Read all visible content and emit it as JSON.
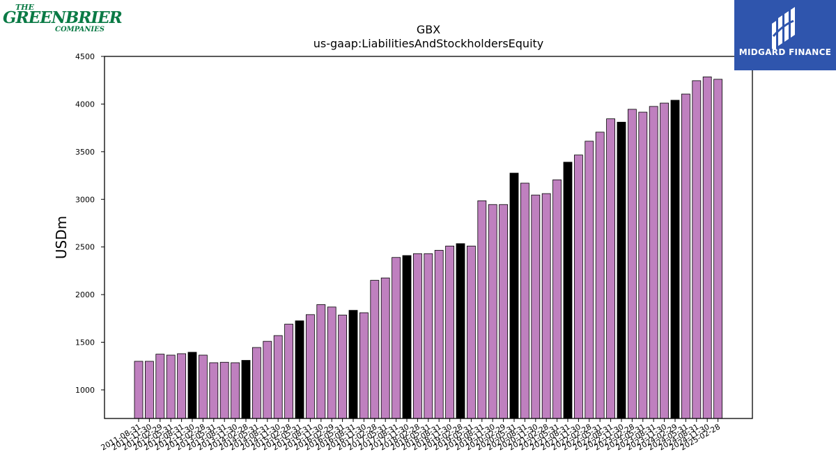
{
  "logos": {
    "left": {
      "line1": "THE",
      "line2": "GREENBRIER",
      "line3": "COMPANIES"
    },
    "right": {
      "text": "MIDGARD FINANCE"
    }
  },
  "chart_data": {
    "type": "bar",
    "title": "GBX",
    "subtitle": "us-gaap:LiabilitiesAndStockholdersEquity",
    "xlabel": "",
    "ylabel": "USDm",
    "ylim": [
      700,
      4500
    ],
    "yticks": [
      1000,
      1500,
      2000,
      2500,
      3000,
      3500,
      4000,
      4500
    ],
    "grid": false,
    "colors": {
      "quarter": "#bf80bf",
      "fiscal_year_end": "#000000"
    },
    "categories": [
      "2011-08-31",
      "2011-11-30",
      "2012-02-29",
      "2012-05-31",
      "2012-08-31",
      "2012-11-30",
      "2013-02-28",
      "2013-05-31",
      "2013-08-31",
      "2013-11-30",
      "2014-02-28",
      "2014-05-31",
      "2014-08-31",
      "2014-11-30",
      "2015-02-28",
      "2015-05-31",
      "2015-08-31",
      "2015-11-30",
      "2016-02-29",
      "2016-05-31",
      "2016-08-31",
      "2016-11-30",
      "2017-02-28",
      "2017-05-31",
      "2017-08-31",
      "2017-11-30",
      "2018-02-28",
      "2018-05-31",
      "2018-08-31",
      "2018-11-30",
      "2019-02-28",
      "2019-05-31",
      "2019-08-31",
      "2019-11-30",
      "2020-02-29",
      "2020-05-31",
      "2020-08-31",
      "2020-11-30",
      "2021-02-28",
      "2021-05-31",
      "2021-08-31",
      "2021-11-30",
      "2022-02-28",
      "2022-05-31",
      "2022-08-31",
      "2022-11-30",
      "2023-02-28",
      "2023-05-31",
      "2023-08-31",
      "2023-11-30",
      "2024-02-29",
      "2024-05-31",
      "2024-08-31",
      "2024-11-30",
      "2025-02-28"
    ],
    "values": [
      1300,
      1300,
      1375,
      1365,
      1380,
      1395,
      1365,
      1285,
      1290,
      1285,
      1310,
      1445,
      1510,
      1570,
      1690,
      1725,
      1790,
      1895,
      1870,
      1785,
      1835,
      1810,
      2150,
      2175,
      2390,
      2410,
      2430,
      2430,
      2465,
      2510,
      2535,
      2510,
      2985,
      2945,
      2945,
      3275,
      3170,
      3045,
      3060,
      3205,
      3390,
      3465,
      3610,
      3705,
      3845,
      3810,
      3945,
      3915,
      3975,
      4010,
      4040,
      4105,
      4245,
      4285,
      4260
    ],
    "fiscal_year_end": [
      false,
      false,
      false,
      false,
      false,
      true,
      false,
      false,
      false,
      false,
      true,
      false,
      false,
      false,
      false,
      true,
      false,
      false,
      false,
      false,
      true,
      false,
      false,
      false,
      false,
      true,
      false,
      false,
      false,
      false,
      true,
      false,
      false,
      false,
      false,
      true,
      false,
      false,
      false,
      false,
      true,
      false,
      false,
      false,
      false,
      true,
      false,
      false,
      false,
      false,
      true,
      false,
      false,
      false,
      false
    ]
  }
}
